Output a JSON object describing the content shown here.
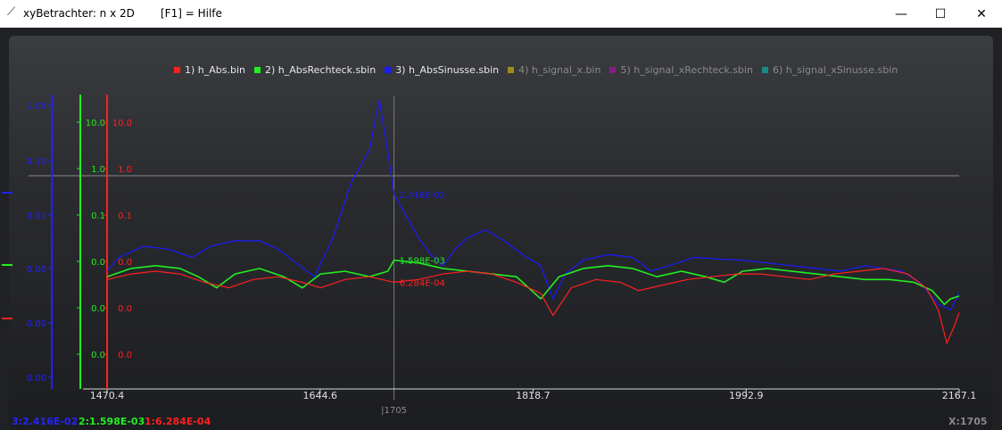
{
  "window": {
    "title": "xyBetrachter: n x 2D",
    "help": "[F1] = Hilfe",
    "min_glyph": "—",
    "max_glyph": "☐",
    "close_glyph": "✕",
    "icon": "chart-icon"
  },
  "legend": [
    {
      "label": "1) h_Abs.bin",
      "color": "#ff2020",
      "active": true
    },
    {
      "label": "2) h_AbsRechteck.sbin",
      "color": "#22ee22",
      "active": true
    },
    {
      "label": "3) h_AbsSinusse.sbin",
      "color": "#1a1aff",
      "active": true
    },
    {
      "label": "4) h_signal_x.bin",
      "color": "#a08a1a",
      "active": false
    },
    {
      "label": "5) h_signal_xRechteck.sbin",
      "color": "#8a1a8a",
      "active": false
    },
    {
      "label": "6) h_signal_xSinusse.sbin",
      "color": "#1a8a8a",
      "active": false
    }
  ],
  "status": {
    "s3": "3:2.416E-02",
    "s2": "2:1.598E-03",
    "s1": "1:6.284E-04",
    "x": "X:1705"
  },
  "chart_data": {
    "type": "line",
    "x_range": [
      1470.4,
      2167.1
    ],
    "x_ticks": [
      "1470.4",
      "1644.6",
      "1818.7",
      "1992.9",
      "2167.1"
    ],
    "cursor_x": 1705,
    "cursor_label": "|1705",
    "y_axes": [
      {
        "series": "3) h_AbsSinusse.sbin",
        "color": "#2222ff",
        "scale": "log",
        "ticks": [
          "1.00",
          "0.10",
          "0.01",
          "0.00",
          "0.00",
          "0.00",
          "0.00"
        ]
      },
      {
        "series": "2) h_AbsRechteck.sbin",
        "color": "#22ee22",
        "scale": "log",
        "ticks": [
          "10.0",
          "1.0",
          "0.1",
          "0.0",
          "0.0",
          "0.0"
        ]
      },
      {
        "series": "1) h_Abs.bin",
        "color": "#ff2020",
        "scale": "log",
        "ticks": [
          "10.0",
          "1.0",
          "0.1",
          "0.0",
          "0.0",
          "0.0"
        ]
      }
    ],
    "series": [
      {
        "name": "3) h_AbsSinusse.sbin",
        "color": "#1a1aff",
        "cursor_value": "2.416E-02",
        "log10_values": [
          [
            1470.4,
            -3.0
          ],
          [
            1480,
            -2.75
          ],
          [
            1500,
            -2.55
          ],
          [
            1520,
            -2.6
          ],
          [
            1540,
            -2.75
          ],
          [
            1555,
            -2.55
          ],
          [
            1575,
            -2.45
          ],
          [
            1595,
            -2.45
          ],
          [
            1610,
            -2.6
          ],
          [
            1625,
            -2.85
          ],
          [
            1640,
            -3.1
          ],
          [
            1655,
            -2.4
          ],
          [
            1670,
            -1.4
          ],
          [
            1685,
            -0.8
          ],
          [
            1693,
            0.1
          ],
          [
            1701,
            -1.0
          ],
          [
            1705,
            -1.61
          ],
          [
            1715,
            -2.0
          ],
          [
            1725,
            -2.4
          ],
          [
            1735,
            -2.7
          ],
          [
            1745,
            -2.9
          ],
          [
            1755,
            -2.6
          ],
          [
            1765,
            -2.4
          ],
          [
            1780,
            -2.25
          ],
          [
            1795,
            -2.45
          ],
          [
            1810,
            -2.7
          ],
          [
            1825,
            -2.9
          ],
          [
            1835,
            -3.5
          ],
          [
            1845,
            -3.05
          ],
          [
            1860,
            -2.8
          ],
          [
            1880,
            -2.7
          ],
          [
            1900,
            -2.75
          ],
          [
            1915,
            -3.0
          ],
          [
            1930,
            -2.9
          ],
          [
            1950,
            -2.75
          ],
          [
            1970,
            -2.78
          ],
          [
            1990,
            -2.8
          ],
          [
            2010,
            -2.85
          ],
          [
            2030,
            -2.9
          ],
          [
            2050,
            -2.95
          ],
          [
            2070,
            -3.0
          ],
          [
            2090,
            -2.9
          ],
          [
            2105,
            -2.95
          ],
          [
            2120,
            -3.0
          ],
          [
            2135,
            -3.2
          ],
          [
            2150,
            -3.6
          ],
          [
            2160,
            -3.7
          ],
          [
            2167.1,
            -3.4
          ]
        ]
      },
      {
        "name": "2) h_AbsRechteck.sbin",
        "color": "#22ee22",
        "cursor_value": "1.598E-03",
        "log10_values": [
          [
            1470.4,
            -3.1
          ],
          [
            1490,
            -2.95
          ],
          [
            1510,
            -2.9
          ],
          [
            1530,
            -2.95
          ],
          [
            1545,
            -3.1
          ],
          [
            1560,
            -3.3
          ],
          [
            1575,
            -3.05
          ],
          [
            1595,
            -2.95
          ],
          [
            1615,
            -3.1
          ],
          [
            1630,
            -3.3
          ],
          [
            1645,
            -3.05
          ],
          [
            1665,
            -3.0
          ],
          [
            1685,
            -3.1
          ],
          [
            1700,
            -3.0
          ],
          [
            1705,
            -2.8
          ],
          [
            1725,
            -2.85
          ],
          [
            1745,
            -2.95
          ],
          [
            1765,
            -3.0
          ],
          [
            1785,
            -3.05
          ],
          [
            1805,
            -3.1
          ],
          [
            1825,
            -3.5
          ],
          [
            1840,
            -3.1
          ],
          [
            1860,
            -2.95
          ],
          [
            1880,
            -2.9
          ],
          [
            1900,
            -2.95
          ],
          [
            1920,
            -3.1
          ],
          [
            1940,
            -3.0
          ],
          [
            1960,
            -3.1
          ],
          [
            1975,
            -3.2
          ],
          [
            1990,
            -3.0
          ],
          [
            2010,
            -2.95
          ],
          [
            2030,
            -3.0
          ],
          [
            2050,
            -3.05
          ],
          [
            2070,
            -3.1
          ],
          [
            2090,
            -3.15
          ],
          [
            2110,
            -3.15
          ],
          [
            2130,
            -3.2
          ],
          [
            2145,
            -3.35
          ],
          [
            2155,
            -3.6
          ],
          [
            2160,
            -3.5
          ],
          [
            2167.1,
            -3.45
          ]
        ]
      },
      {
        "name": "1) h_Abs.bin",
        "color": "#ff2020",
        "cursor_value": "6.284E-04",
        "log10_values": [
          [
            1470.4,
            -3.15
          ],
          [
            1490,
            -3.05
          ],
          [
            1510,
            -3.0
          ],
          [
            1530,
            -3.05
          ],
          [
            1550,
            -3.2
          ],
          [
            1570,
            -3.3
          ],
          [
            1590,
            -3.15
          ],
          [
            1610,
            -3.1
          ],
          [
            1630,
            -3.2
          ],
          [
            1645,
            -3.3
          ],
          [
            1665,
            -3.15
          ],
          [
            1685,
            -3.1
          ],
          [
            1705,
            -3.2
          ],
          [
            1725,
            -3.15
          ],
          [
            1745,
            -3.05
          ],
          [
            1765,
            -3.0
          ],
          [
            1785,
            -3.05
          ],
          [
            1805,
            -3.2
          ],
          [
            1825,
            -3.4
          ],
          [
            1835,
            -3.8
          ],
          [
            1850,
            -3.3
          ],
          [
            1870,
            -3.15
          ],
          [
            1890,
            -3.2
          ],
          [
            1905,
            -3.35
          ],
          [
            1925,
            -3.25
          ],
          [
            1945,
            -3.15
          ],
          [
            1965,
            -3.1
          ],
          [
            1985,
            -3.05
          ],
          [
            2005,
            -3.05
          ],
          [
            2025,
            -3.1
          ],
          [
            2045,
            -3.15
          ],
          [
            2065,
            -3.05
          ],
          [
            2085,
            -3.0
          ],
          [
            2105,
            -2.95
          ],
          [
            2125,
            -3.05
          ],
          [
            2140,
            -3.3
          ],
          [
            2150,
            -3.7
          ],
          [
            2157,
            -4.3
          ],
          [
            2163,
            -4.0
          ],
          [
            2167.1,
            -3.75
          ]
        ]
      }
    ]
  }
}
